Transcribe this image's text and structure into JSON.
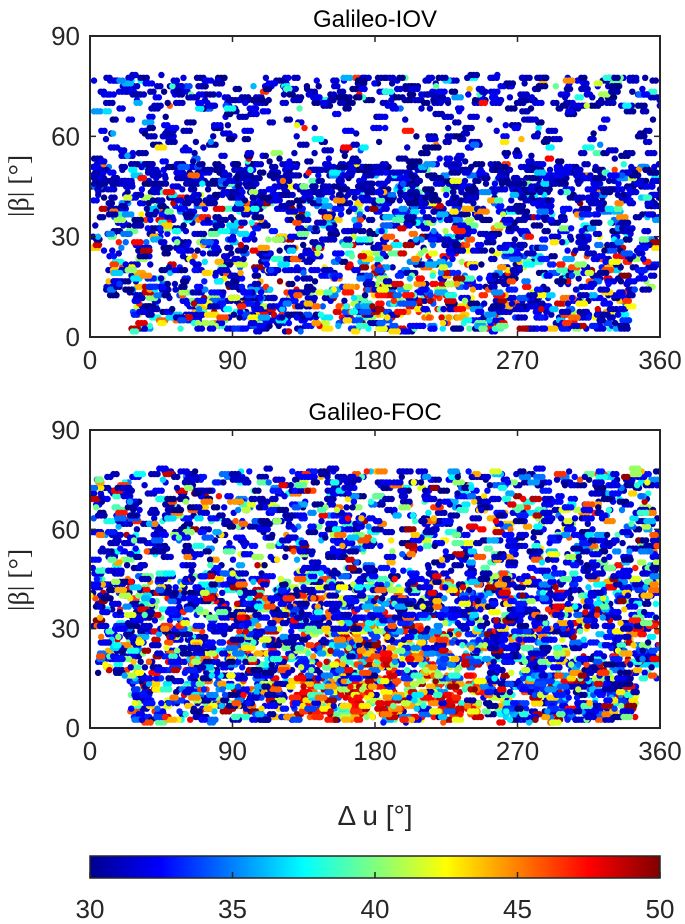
{
  "chart_data": [
    {
      "type": "scatter",
      "title": "Galileo-IOV",
      "xlabel": "",
      "ylabel": "|β| [°]",
      "xlim": [
        0,
        360
      ],
      "ylim": [
        0,
        90
      ],
      "xticks": [
        "0",
        "90",
        "180",
        "270",
        "360"
      ],
      "yticks": [
        "0",
        "30",
        "60",
        "90"
      ],
      "color_scale": "jet",
      "color_range": [
        30,
        50
      ],
      "bands": [
        {
          "y": [
            2,
            12
          ],
          "x": [
            25,
            340
          ],
          "n": 520,
          "c_mode": "mixed"
        },
        {
          "y": [
            12,
            25
          ],
          "x": [
            10,
            355
          ],
          "n": 520,
          "c_mode": "mixed"
        },
        {
          "y": [
            25,
            40
          ],
          "x": [
            0,
            360
          ],
          "n": 620,
          "c_mode": "blue_mixed"
        },
        {
          "y": [
            40,
            52
          ],
          "x": [
            0,
            360
          ],
          "n": 720,
          "c_mode": "blue"
        },
        {
          "y": [
            52,
            68
          ],
          "x": [
            0,
            360
          ],
          "n": 200,
          "c_mode": "blue"
        },
        {
          "y": [
            68,
            78
          ],
          "x": [
            0,
            360
          ],
          "n": 320,
          "c_mode": "blue"
        }
      ],
      "hot_zone": {
        "x": [
          140,
          240
        ],
        "y": [
          2,
          30
        ]
      }
    },
    {
      "type": "scatter",
      "title": "Galileo-FOC",
      "xlabel": "Δ u [°]",
      "ylabel": "|β| [°]",
      "xlim": [
        0,
        360
      ],
      "ylim": [
        0,
        90
      ],
      "xticks": [
        "0",
        "90",
        "180",
        "270",
        "360"
      ],
      "yticks": [
        "0",
        "30",
        "60",
        "90"
      ],
      "color_scale": "jet",
      "color_range": [
        30,
        50
      ],
      "bands": [
        {
          "y": [
            2,
            15
          ],
          "x": [
            25,
            345
          ],
          "n": 900,
          "c_mode": "hot"
        },
        {
          "y": [
            15,
            30
          ],
          "x": [
            5,
            360
          ],
          "n": 1000,
          "c_mode": "mixed"
        },
        {
          "y": [
            30,
            45
          ],
          "x": [
            0,
            360
          ],
          "n": 1000,
          "c_mode": "mixed"
        },
        {
          "y": [
            45,
            62
          ],
          "x": [
            0,
            360
          ],
          "n": 600,
          "c_mode": "blue_mixed"
        },
        {
          "y": [
            62,
            78
          ],
          "x": [
            0,
            360
          ],
          "n": 600,
          "c_mode": "blue_mixed"
        }
      ],
      "hot_zone": {
        "x": [
          130,
          250
        ],
        "y": [
          2,
          30
        ]
      }
    }
  ],
  "colorbar": {
    "min": 30,
    "max": 50,
    "ticks": [
      "30",
      "35",
      "40",
      "45",
      "50"
    ]
  }
}
